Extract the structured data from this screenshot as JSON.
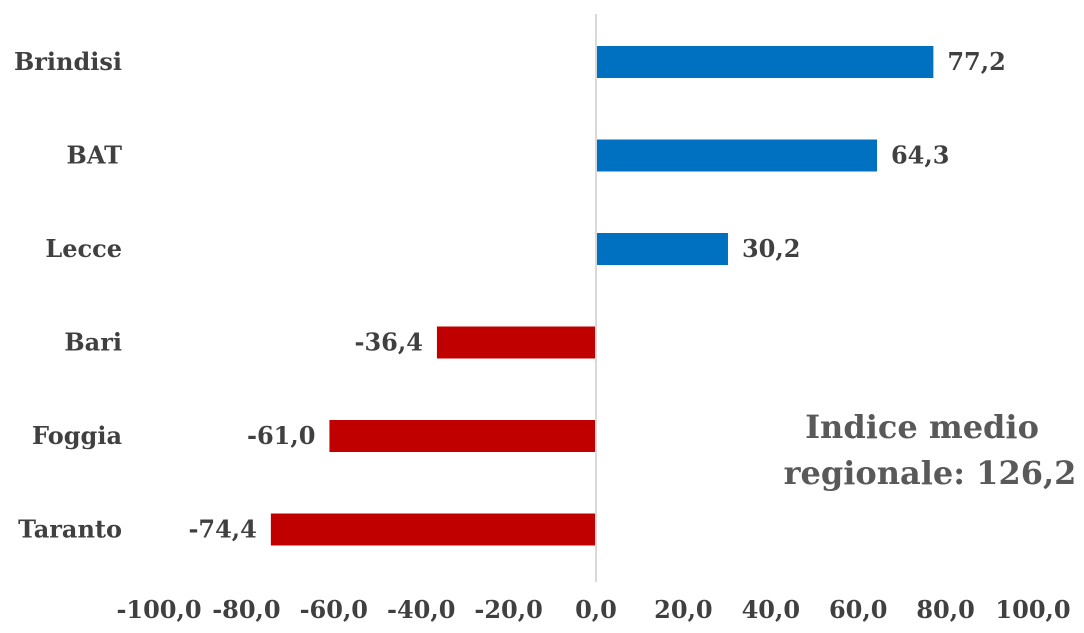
{
  "chart_data": {
    "type": "bar",
    "orientation": "horizontal",
    "categories": [
      "Brindisi",
      "BAT",
      "Lecce",
      "Bari",
      "Foggia",
      "Taranto"
    ],
    "values": [
      77.2,
      64.3,
      30.2,
      -36.4,
      -61.0,
      -74.4
    ],
    "value_labels": [
      "77,2",
      "64,3",
      "30,2",
      "-36,4",
      "-61,0",
      "-74,4"
    ],
    "xlim": [
      -100,
      100
    ],
    "x_ticks": [
      -100,
      -80,
      -60,
      -40,
      -20,
      0,
      20,
      40,
      60,
      80,
      100
    ],
    "x_tick_labels": [
      "-100,0",
      "-80,0",
      "-60,0",
      "-40,0",
      "-20,0",
      "0,0",
      "20,0",
      "40,0",
      "60,0",
      "80,0",
      "100,0"
    ],
    "colors": {
      "positive": "#0070C0",
      "negative": "#C00000",
      "axis": "#D9D9D9"
    },
    "grid": false,
    "legend": "none",
    "annotation": {
      "line1": "Indice medio",
      "line2": "regionale: 126,2"
    }
  }
}
